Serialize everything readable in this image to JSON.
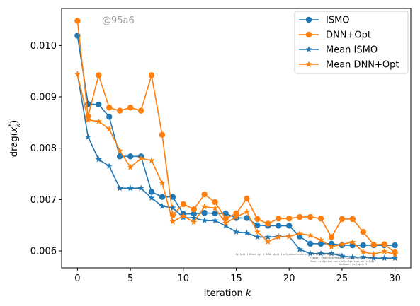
{
  "watermark": "@95a6",
  "chart_data": {
    "type": "line",
    "xlabel": "Iteration k",
    "ylabel": "drag(x_k^*)",
    "xlim": [
      -1.5,
      31.5
    ],
    "ylim": [
      0.00567,
      0.01072
    ],
    "xticks": [
      0,
      5,
      10,
      15,
      20,
      25,
      30
    ],
    "yticks": [
      0.006,
      0.007,
      0.008,
      0.009,
      0.01
    ],
    "ytick_labels": [
      "0.006",
      "0.007",
      "0.008",
      "0.009",
      "0.010"
    ],
    "grid": false,
    "legend_position": "top-right",
    "series": [
      {
        "name": "ISMO",
        "color": "#1f77b4",
        "marker": "circle",
        "x": [
          0,
          1,
          2,
          3,
          4,
          5,
          6,
          7,
          8,
          9,
          10,
          11,
          12,
          13,
          14,
          15,
          16,
          17,
          18,
          19,
          20,
          21,
          22,
          23,
          24,
          25,
          26,
          27,
          28,
          29,
          30
        ],
        "y": [
          0.01019,
          0.00886,
          0.00885,
          0.00861,
          0.00784,
          0.00784,
          0.00784,
          0.00715,
          0.00705,
          0.00705,
          0.00672,
          0.00672,
          0.00674,
          0.00673,
          0.00673,
          0.00664,
          0.00664,
          0.0065,
          0.00649,
          0.00649,
          0.00649,
          0.00628,
          0.00614,
          0.00614,
          0.00614,
          0.00611,
          0.00611,
          0.00611,
          0.00611,
          0.00611,
          0.00611
        ]
      },
      {
        "name": "DNN+Opt",
        "color": "#ff7f0e",
        "marker": "circle",
        "x": [
          0,
          1,
          2,
          3,
          4,
          5,
          6,
          7,
          8,
          9,
          10,
          11,
          12,
          13,
          14,
          15,
          16,
          17,
          18,
          19,
          20,
          21,
          22,
          23,
          24,
          25,
          26,
          27,
          28,
          29,
          30
        ],
        "y": [
          0.01048,
          0.00862,
          0.00942,
          0.00879,
          0.00873,
          0.00879,
          0.00873,
          0.00942,
          0.00826,
          0.0067,
          0.00691,
          0.00681,
          0.0071,
          0.00695,
          0.00663,
          0.00673,
          0.00702,
          0.00662,
          0.00653,
          0.00663,
          0.00663,
          0.00666,
          0.00666,
          0.00663,
          0.00627,
          0.00662,
          0.00662,
          0.00637,
          0.00612,
          0.00613,
          0.00597
        ]
      },
      {
        "name": "Mean ISMO",
        "color": "#1f77b4",
        "marker": "star",
        "x": [
          0,
          1,
          2,
          3,
          4,
          5,
          6,
          7,
          8,
          9,
          10,
          11,
          12,
          13,
          14,
          15,
          16,
          17,
          18,
          19,
          20,
          21,
          22,
          23,
          24,
          25,
          26,
          27,
          28,
          29,
          30
        ],
        "y": [
          0.00944,
          0.00822,
          0.00778,
          0.00765,
          0.00722,
          0.00722,
          0.00722,
          0.00703,
          0.00687,
          0.00684,
          0.00665,
          0.00664,
          0.00659,
          0.00659,
          0.00649,
          0.00637,
          0.00635,
          0.00627,
          0.00627,
          0.00628,
          0.00628,
          0.00603,
          0.00595,
          0.00595,
          0.00595,
          0.0059,
          0.00588,
          0.00588,
          0.00586,
          0.00586,
          0.00586
        ]
      },
      {
        "name": "Mean DNN+Opt",
        "color": "#ff7f0e",
        "marker": "star",
        "x": [
          0,
          1,
          2,
          3,
          4,
          5,
          6,
          7,
          8,
          9,
          10,
          11,
          12,
          13,
          14,
          15,
          16,
          17,
          18,
          19,
          20,
          21,
          22,
          23,
          24,
          25,
          26,
          27,
          28,
          29,
          30
        ],
        "y": [
          0.00944,
          0.00855,
          0.00852,
          0.00837,
          0.00795,
          0.00763,
          0.0078,
          0.00776,
          0.00732,
          0.00657,
          0.00668,
          0.00656,
          0.00686,
          0.00683,
          0.00654,
          0.00666,
          0.00676,
          0.00637,
          0.00618,
          0.00627,
          0.00628,
          0.00634,
          0.0063,
          0.00621,
          0.00608,
          0.00613,
          0.00617,
          0.00598,
          0.00594,
          0.00599,
          0.00593
        ]
      }
    ]
  }
}
